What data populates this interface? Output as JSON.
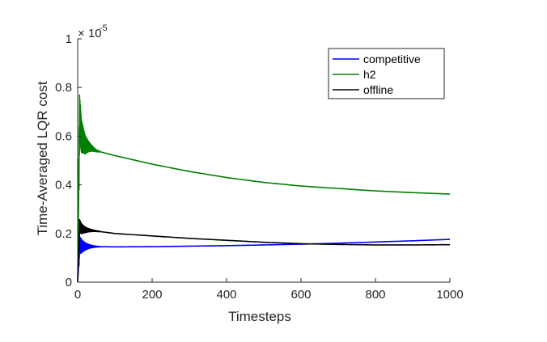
{
  "chart_data": {
    "type": "line",
    "title": "",
    "xlabel": "Timesteps",
    "ylabel": "Time-Averaged LQR cost",
    "xlim": [
      0,
      1000
    ],
    "ylim": [
      0,
      1
    ],
    "y_multiplier": {
      "base": "10",
      "exponent": "-5"
    },
    "x_ticks": [
      "0",
      "200",
      "400",
      "600",
      "800",
      "1000"
    ],
    "y_ticks": [
      "0",
      "0.2",
      "0.4",
      "0.6",
      "0.8",
      "1"
    ],
    "grid": false,
    "legend_position": "top-right",
    "series": [
      {
        "name": "competitive",
        "color": "#0000ff",
        "x": [
          0,
          5,
          10,
          20,
          50,
          100,
          200,
          300,
          400,
          500,
          600,
          650,
          700,
          800,
          900,
          1000
        ],
        "y": [
          0.0,
          0.152,
          0.148,
          0.147,
          0.146,
          0.145,
          0.146,
          0.148,
          0.15,
          0.153,
          0.156,
          0.158,
          0.16,
          0.165,
          0.17,
          0.176
        ],
        "oscillation": {
          "start": 0.08,
          "end": 0.01,
          "until_x": 60
        }
      },
      {
        "name": "h2",
        "color": "#008000",
        "x": [
          0,
          5,
          10,
          20,
          50,
          100,
          200,
          300,
          400,
          500,
          600,
          700,
          800,
          900,
          1000
        ],
        "y": [
          0.0,
          0.68,
          0.6,
          0.565,
          0.54,
          0.52,
          0.485,
          0.455,
          0.43,
          0.41,
          0.395,
          0.385,
          0.375,
          0.368,
          0.362
        ],
        "oscillation": {
          "start": 0.2,
          "end": 0.02,
          "until_x": 60
        }
      },
      {
        "name": "offline",
        "color": "#000000",
        "x": [
          0,
          5,
          10,
          20,
          50,
          100,
          200,
          300,
          400,
          500,
          600,
          700,
          800,
          900,
          1000
        ],
        "y": [
          0.0,
          0.23,
          0.22,
          0.215,
          0.21,
          0.2,
          0.19,
          0.18,
          0.172,
          0.164,
          0.158,
          0.155,
          0.153,
          0.153,
          0.154
        ],
        "oscillation": {
          "start": 0.06,
          "end": 0.01,
          "until_x": 60
        }
      }
    ]
  }
}
